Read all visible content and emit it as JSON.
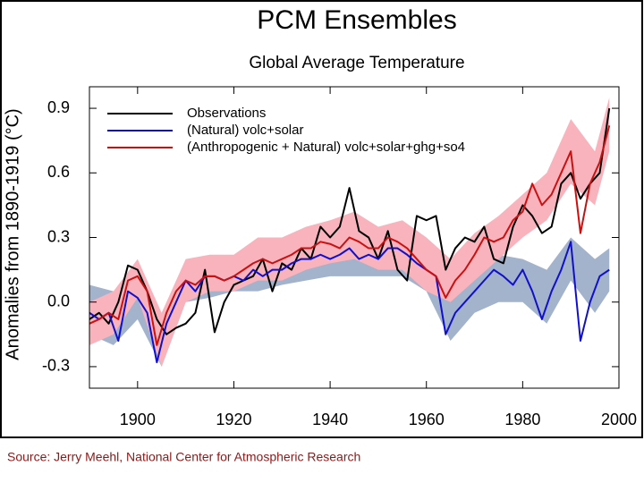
{
  "chart_data": {
    "type": "line",
    "title": "PCM Ensembles",
    "subtitle": "Global Average Temperature",
    "y_label": "Anomalies from 1890-1919 (°C)",
    "source": "Source:  Jerry Meehl, National Center for Atmospheric Research",
    "xlim": [
      1890,
      2000
    ],
    "xticks": [
      1900,
      1920,
      1940,
      1960,
      1980,
      2000
    ],
    "ylim": [
      -0.4,
      1.0
    ],
    "yticks": [
      0.9,
      0.6,
      0.3,
      {
        "value": 0,
        "label": "0.0"
      },
      -0.3
    ],
    "grid": false,
    "legend": "top-left",
    "x": [
      1890,
      1892,
      1894,
      1896,
      1898,
      1900,
      1902,
      1904,
      1906,
      1908,
      1910,
      1912,
      1914,
      1916,
      1918,
      1920,
      1922,
      1924,
      1926,
      1928,
      1930,
      1932,
      1934,
      1936,
      1938,
      1940,
      1942,
      1944,
      1946,
      1948,
      1950,
      1952,
      1954,
      1956,
      1958,
      1960,
      1962,
      1964,
      1966,
      1968,
      1970,
      1972,
      1974,
      1976,
      1978,
      1980,
      1982,
      1984,
      1986,
      1988,
      1990,
      1992,
      1994,
      1996,
      1998
    ],
    "series": [
      {
        "name": "Observations",
        "color": "#000000",
        "values": [
          -0.08,
          -0.05,
          -0.1,
          0.0,
          0.17,
          0.15,
          0.05,
          -0.08,
          -0.15,
          -0.12,
          -0.1,
          -0.05,
          0.15,
          -0.14,
          0.0,
          0.08,
          0.1,
          0.12,
          0.2,
          0.05,
          0.18,
          0.15,
          0.25,
          0.2,
          0.35,
          0.3,
          0.35,
          0.53,
          0.33,
          0.3,
          0.2,
          0.33,
          0.15,
          0.1,
          0.4,
          0.38,
          0.4,
          0.15,
          0.25,
          0.3,
          0.28,
          0.35,
          0.2,
          0.18,
          0.35,
          0.45,
          0.4,
          0.32,
          0.35,
          0.55,
          0.6,
          0.48,
          0.55,
          0.6,
          0.9
        ]
      },
      {
        "name": "(Natural) volc+solar",
        "color": "#1010cc",
        "values": [
          -0.05,
          -0.08,
          -0.05,
          -0.18,
          0.05,
          0.02,
          -0.05,
          -0.28,
          -0.1,
          0.0,
          0.1,
          0.05,
          0.12,
          0.12,
          0.1,
          0.12,
          0.1,
          0.15,
          0.12,
          0.15,
          0.15,
          0.18,
          0.2,
          0.2,
          0.22,
          0.2,
          0.22,
          0.25,
          0.2,
          0.22,
          0.2,
          0.25,
          0.25,
          0.22,
          0.18,
          0.15,
          0.12,
          -0.15,
          -0.05,
          0.0,
          0.05,
          0.1,
          0.15,
          0.12,
          0.08,
          0.15,
          0.05,
          -0.08,
          0.05,
          0.15,
          0.28,
          -0.18,
          0.0,
          0.12,
          0.15
        ]
      },
      {
        "name": "(Anthropogenic + Natural) volc+solar+ghg+so4",
        "color": "#cc1010",
        "values": [
          -0.1,
          -0.08,
          -0.05,
          -0.08,
          0.1,
          0.12,
          0.05,
          -0.2,
          -0.05,
          0.05,
          0.1,
          0.08,
          0.12,
          0.12,
          0.1,
          0.12,
          0.15,
          0.18,
          0.2,
          0.18,
          0.2,
          0.22,
          0.25,
          0.25,
          0.28,
          0.27,
          0.25,
          0.3,
          0.28,
          0.25,
          0.25,
          0.3,
          0.28,
          0.25,
          0.2,
          0.15,
          0.12,
          0.02,
          0.1,
          0.15,
          0.22,
          0.3,
          0.28,
          0.3,
          0.38,
          0.42,
          0.55,
          0.45,
          0.5,
          0.6,
          0.7,
          0.32,
          0.55,
          0.65,
          0.82
        ]
      }
    ],
    "ranges": [
      {
        "color": "#a3b3cb",
        "x": [
          1890,
          1895,
          1900,
          1905,
          1910,
          1915,
          1920,
          1925,
          1930,
          1935,
          1940,
          1945,
          1950,
          1955,
          1960,
          1965,
          1970,
          1975,
          1980,
          1985,
          1990,
          1995,
          1998
        ],
        "lower": [
          -0.15,
          -0.2,
          -0.08,
          -0.3,
          0.0,
          0.02,
          0.05,
          0.05,
          0.08,
          0.1,
          0.12,
          0.12,
          0.12,
          0.12,
          0.05,
          -0.18,
          -0.05,
          0.0,
          0.0,
          -0.1,
          0.1,
          -0.05,
          0.05
        ],
        "upper": [
          0.08,
          0.05,
          0.1,
          -0.05,
          0.18,
          0.2,
          0.2,
          0.22,
          0.25,
          0.28,
          0.3,
          0.32,
          0.3,
          0.3,
          0.25,
          0.05,
          0.2,
          0.22,
          0.2,
          0.15,
          0.3,
          0.2,
          0.25
        ]
      },
      {
        "color": "#f9b3bd",
        "x": [
          1890,
          1895,
          1900,
          1905,
          1910,
          1915,
          1920,
          1925,
          1930,
          1935,
          1940,
          1945,
          1950,
          1955,
          1960,
          1965,
          1970,
          1975,
          1980,
          1985,
          1990,
          1995,
          1998
        ],
        "lower": [
          -0.2,
          -0.15,
          0.02,
          -0.3,
          0.0,
          0.05,
          0.05,
          0.1,
          0.1,
          0.15,
          0.18,
          0.2,
          0.15,
          0.15,
          0.05,
          0.0,
          0.1,
          0.2,
          0.3,
          0.38,
          0.55,
          0.45,
          0.7
        ],
        "upper": [
          0.0,
          0.05,
          0.2,
          -0.05,
          0.2,
          0.22,
          0.22,
          0.3,
          0.3,
          0.35,
          0.38,
          0.42,
          0.35,
          0.38,
          0.3,
          0.2,
          0.32,
          0.4,
          0.5,
          0.6,
          0.85,
          0.7,
          0.95
        ]
      }
    ]
  }
}
